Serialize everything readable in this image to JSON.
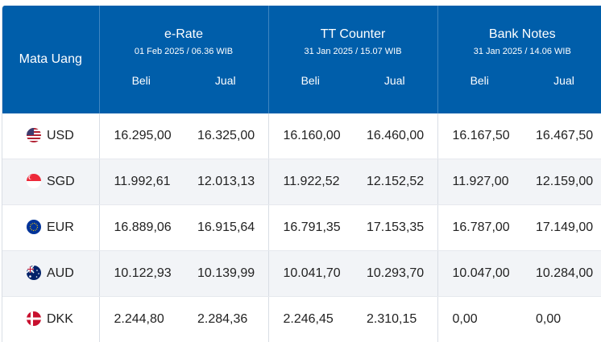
{
  "header": {
    "currency_col": "Mata Uang",
    "groups": [
      {
        "title": "e-Rate",
        "date": "01 Feb 2025 / 06.36 WIB"
      },
      {
        "title": "TT Counter",
        "date": "31 Jan 2025 / 15.07 WIB"
      },
      {
        "title": "Bank Notes",
        "date": "31 Jan 2025 / 14.06 WIB"
      }
    ],
    "buy_label": "Beli",
    "sell_label": "Jual"
  },
  "rows": [
    {
      "code": "USD",
      "flag": "us-flag-icon",
      "values": [
        "16.295,00",
        "16.325,00",
        "16.160,00",
        "16.460,00",
        "16.167,50",
        "16.467,50"
      ]
    },
    {
      "code": "SGD",
      "flag": "sg-flag-icon",
      "values": [
        "11.992,61",
        "12.013,13",
        "11.922,52",
        "12.152,52",
        "11.927,00",
        "12.159,00"
      ]
    },
    {
      "code": "EUR",
      "flag": "eu-flag-icon",
      "values": [
        "16.889,06",
        "16.915,64",
        "16.791,35",
        "17.153,35",
        "16.787,00",
        "17.149,00"
      ]
    },
    {
      "code": "AUD",
      "flag": "au-flag-icon",
      "values": [
        "10.122,93",
        "10.139,99",
        "10.041,70",
        "10.293,70",
        "10.047,00",
        "10.284,00"
      ]
    },
    {
      "code": "DKK",
      "flag": "dk-flag-icon",
      "values": [
        "2.244,80",
        "2.284,36",
        "2.246,45",
        "2.310,15",
        "0,00",
        "0,00"
      ]
    }
  ],
  "colors": {
    "header_bg": "#005eaa",
    "row_alt_bg": "#f2f4f7"
  }
}
